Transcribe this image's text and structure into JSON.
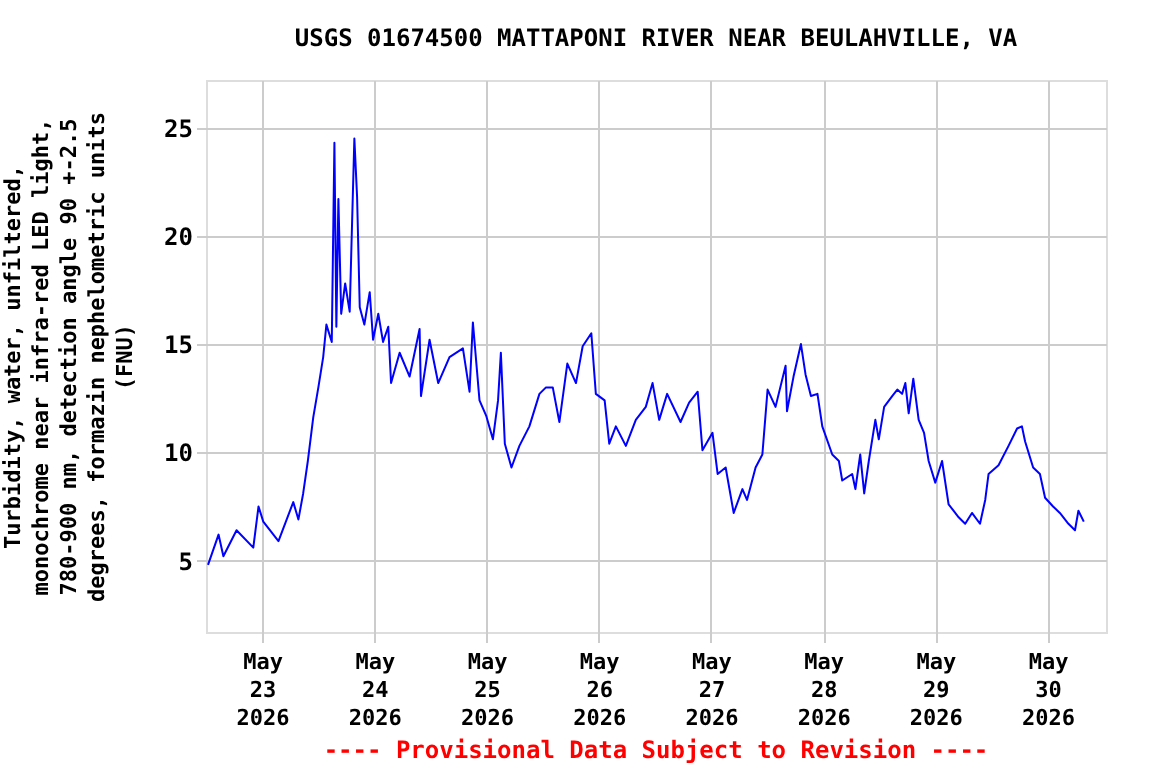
{
  "chart_data": {
    "type": "line",
    "title": "USGS 01674500 MATTAPONI RIVER NEAR BEULAHVILLE, VA",
    "ylabel": "Turbidity, water, unfiltered,\nmonochrome near infra-red LED light,\n780-900 nm, detection angle 90 +-2.5\ndegrees, formazin nephelometric units\n(FNU)",
    "annotations": [
      "---- Provisional Data Subject to Revision ----"
    ],
    "xlim": [
      "2026-05-22T12:00",
      "2026-05-30T12:30"
    ],
    "xticks": [
      {
        "value": "2026-05-23",
        "label": "May\n23\n2026"
      },
      {
        "value": "2026-05-24",
        "label": "May\n24\n2026"
      },
      {
        "value": "2026-05-25",
        "label": "May\n25\n2026"
      },
      {
        "value": "2026-05-26",
        "label": "May\n26\n2026"
      },
      {
        "value": "2026-05-27",
        "label": "May\n27\n2026"
      },
      {
        "value": "2026-05-28",
        "label": "May\n28\n2026"
      },
      {
        "value": "2026-05-29",
        "label": "May\n29\n2026"
      },
      {
        "value": "2026-05-30",
        "label": "May\n30\n2026"
      }
    ],
    "ylim": [
      1.7,
      27.2
    ],
    "yticks": [
      5,
      10,
      15,
      20,
      25
    ],
    "grid": true,
    "x": [
      "2026-05-22T12:26",
      "2026-05-22T14:41",
      "2026-05-22T15:43",
      "2026-05-22T18:32",
      "2026-05-22T22:07",
      "2026-05-22T23:14",
      "2026-05-23T00:15",
      "2026-05-23T03:30",
      "2026-05-23T06:40",
      "2026-05-23T07:46",
      "2026-05-23T08:47",
      "2026-05-23T09:47",
      "2026-05-23T10:56",
      "2026-05-23T12:02",
      "2026-05-23T13:04",
      "2026-05-23T13:45",
      "2026-05-23T14:54",
      "2026-05-23T15:28",
      "2026-05-23T15:53",
      "2026-05-23T16:19",
      "2026-05-23T16:55",
      "2026-05-23T17:46",
      "2026-05-23T18:44",
      "2026-05-23T19:44",
      "2026-05-23T20:19",
      "2026-05-23T20:53",
      "2026-05-23T21:52",
      "2026-05-23T23:01",
      "2026-05-23T23:44",
      "2026-05-24T00:51",
      "2026-05-24T01:52",
      "2026-05-24T02:59",
      "2026-05-24T03:35",
      "2026-05-24T05:25",
      "2026-05-24T07:33",
      "2026-05-24T09:41",
      "2026-05-24T09:59",
      "2026-05-24T11:49",
      "2026-05-24T13:40",
      "2026-05-24T16:05",
      "2026-05-24T18:57",
      "2026-05-24T20:22",
      "2026-05-24T21:05",
      "2026-05-24T22:30",
      "2026-05-24T23:55",
      "2026-05-25T01:22",
      "2026-05-25T02:28",
      "2026-05-25T03:04",
      "2026-05-25T03:55",
      "2026-05-25T05:20",
      "2026-05-25T07:02",
      "2026-05-25T09:10",
      "2026-05-25T11:19",
      "2026-05-25T12:43",
      "2026-05-25T14:10",
      "2026-05-25T15:35",
      "2026-05-25T17:17",
      "2026-05-25T19:08",
      "2026-05-25T20:34",
      "2026-05-25T22:25",
      "2026-05-25T23:23",
      "2026-05-26T01:16",
      "2026-05-26T02:15",
      "2026-05-26T03:40",
      "2026-05-26T05:48",
      "2026-05-26T07:56",
      "2026-05-26T10:04",
      "2026-05-26T11:31",
      "2026-05-26T12:56",
      "2026-05-26T14:38",
      "2026-05-26T17:30",
      "2026-05-26T19:20",
      "2026-05-26T21:10",
      "2026-05-26T22:11",
      "2026-05-27T00:20",
      "2026-05-27T01:26",
      "2026-05-27T03:09",
      "2026-05-27T04:52",
      "2026-05-27T06:44",
      "2026-05-27T07:43",
      "2026-05-27T09:33",
      "2026-05-27T11:00",
      "2026-05-27T12:07",
      "2026-05-27T13:49",
      "2026-05-27T15:58",
      "2026-05-27T16:16",
      "2026-05-27T17:40",
      "2026-05-27T19:15",
      "2026-05-27T20:14",
      "2026-05-27T21:23",
      "2026-05-27T22:47",
      "2026-05-27T23:49",
      "2026-05-28T01:57",
      "2026-05-28T03:22",
      "2026-05-28T04:05",
      "2026-05-28T06:13",
      "2026-05-28T06:54",
      "2026-05-28T07:56",
      "2026-05-28T08:47",
      "2026-05-28T09:46",
      "2026-05-28T11:10",
      "2026-05-28T11:54",
      "2026-05-28T13:03",
      "2026-05-28T14:46",
      "2026-05-28T15:52",
      "2026-05-28T16:53",
      "2026-05-28T17:35",
      "2026-05-28T18:18",
      "2026-05-28T19:17",
      "2026-05-28T20:26",
      "2026-05-28T21:35",
      "2026-05-28T22:34",
      "2026-05-28T23:59",
      "2026-05-29T01:26",
      "2026-05-29T02:50",
      "2026-05-29T04:59",
      "2026-05-29T06:23",
      "2026-05-29T07:50",
      "2026-05-29T09:33",
      "2026-05-29T10:40",
      "2026-05-29T11:23",
      "2026-05-29T13:31",
      "2026-05-29T15:39",
      "2026-05-29T17:29",
      "2026-05-29T18:31",
      "2026-05-29T19:12",
      "2026-05-29T20:55",
      "2026-05-29T22:22",
      "2026-05-29T23:28",
      "2026-05-30T01:11",
      "2026-05-30T02:38",
      "2026-05-30T04:28",
      "2026-05-30T05:52",
      "2026-05-30T06:36",
      "2026-05-30T07:45"
    ],
    "series": [
      {
        "color": "#0000ff",
        "values": [
          4.8,
          6.2,
          5.2,
          6.4,
          5.6,
          7.5,
          6.8,
          5.9,
          7.7,
          6.9,
          8.1,
          9.6,
          11.6,
          13.0,
          14.4,
          15.9,
          15.1,
          24.3,
          15.8,
          21.7,
          16.4,
          17.8,
          16.5,
          24.5,
          21.8,
          16.7,
          15.9,
          17.4,
          15.2,
          16.4,
          15.1,
          15.8,
          13.2,
          14.6,
          13.5,
          15.7,
          12.6,
          15.2,
          13.2,
          14.4,
          14.8,
          12.8,
          16.0,
          12.4,
          11.7,
          10.6,
          12.4,
          14.6,
          10.4,
          9.3,
          10.3,
          11.2,
          12.7,
          13.0,
          13.0,
          11.4,
          14.1,
          13.2,
          14.9,
          15.5,
          12.7,
          12.4,
          10.4,
          11.2,
          10.3,
          11.5,
          12.1,
          13.2,
          11.5,
          12.7,
          11.4,
          12.3,
          12.8,
          10.1,
          10.9,
          9.0,
          9.3,
          7.2,
          8.3,
          7.8,
          9.3,
          9.9,
          12.9,
          12.1,
          14.0,
          11.9,
          13.5,
          15.0,
          13.6,
          12.6,
          12.7,
          11.2,
          9.9,
          9.6,
          8.7,
          9.0,
          8.3,
          9.9,
          8.1,
          9.6,
          11.5,
          10.6,
          12.1,
          12.6,
          12.9,
          12.7,
          13.2,
          11.8,
          13.4,
          11.5,
          10.9,
          9.6,
          8.6,
          9.6,
          7.6,
          7.0,
          6.7,
          7.2,
          6.7,
          7.8,
          9.0,
          9.4,
          10.3,
          11.1,
          11.2,
          10.5,
          9.3,
          9.0,
          7.9,
          7.5,
          7.2,
          6.7,
          6.4,
          7.3,
          6.8
        ]
      }
    ]
  }
}
